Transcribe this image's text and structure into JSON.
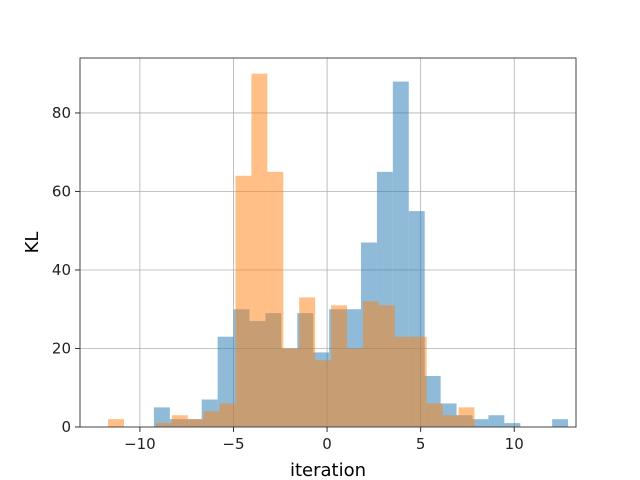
{
  "chart_data": {
    "type": "histogram",
    "xlabel": "iteration",
    "ylabel": "KL",
    "xlim": [
      -13.2,
      13.3
    ],
    "ylim": [
      0,
      94
    ],
    "grid": true,
    "xticks": [
      -10,
      -5,
      0,
      5,
      10
    ],
    "xtick_labels": [
      "−10",
      "−5",
      "0",
      "5",
      "10"
    ],
    "yticks": [
      0,
      20,
      40,
      60,
      80
    ],
    "ytick_labels": [
      "0",
      "20",
      "40",
      "60",
      "80"
    ],
    "series": [
      {
        "color": "#1f77b4",
        "alpha": 0.5,
        "bin_start": -9.25,
        "bin_width": 0.851,
        "values": [
          5,
          2,
          2,
          7,
          23,
          30,
          27,
          29,
          20,
          29,
          19,
          30,
          30,
          47,
          65,
          88,
          55,
          13,
          6,
          3,
          2,
          3,
          1,
          0,
          0,
          2
        ]
      },
      {
        "color": "#ff7f0e",
        "alpha": 0.5,
        "bin_start": -11.7,
        "bin_width": 0.851,
        "values": [
          2,
          0,
          0,
          1,
          3,
          2,
          4,
          6,
          64,
          90,
          65,
          20,
          33,
          17,
          31,
          20,
          32,
          31,
          23,
          23,
          6,
          3,
          5
        ]
      }
    ]
  }
}
